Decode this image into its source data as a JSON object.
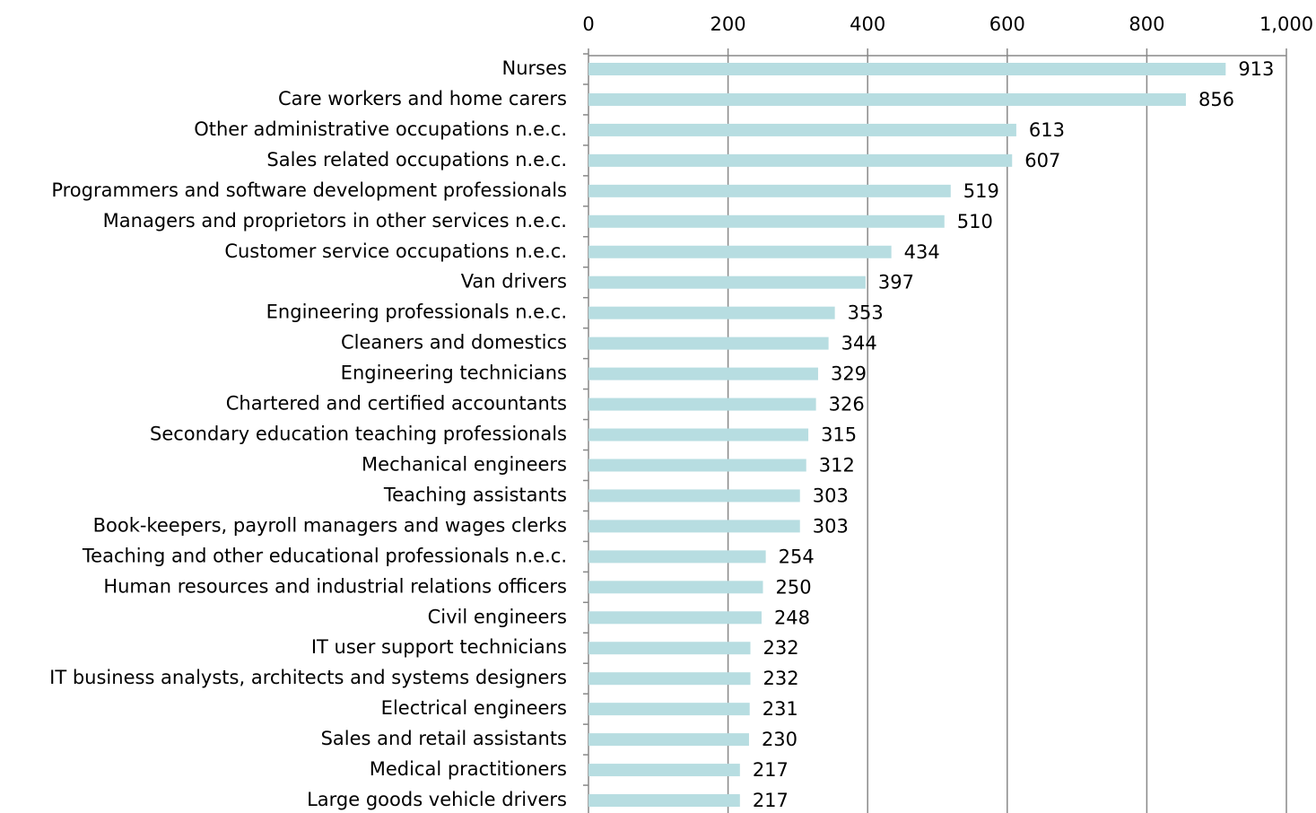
{
  "chart_data": {
    "type": "bar",
    "orientation": "horizontal",
    "categories": [
      "Nurses",
      "Care workers and home carers",
      "Other administrative occupations n.e.c.",
      "Sales related occupations n.e.c.",
      "Programmers and software development professionals",
      "Managers and proprietors in other services n.e.c.",
      "Customer service occupations n.e.c.",
      "Van drivers",
      "Engineering professionals n.e.c.",
      "Cleaners and domestics",
      "Engineering technicians",
      "Chartered and certified accountants",
      "Secondary education teaching professionals",
      "Mechanical engineers",
      "Teaching assistants",
      "Book-keepers, payroll managers and wages clerks",
      "Teaching and other educational professionals n.e.c.",
      "Human resources and industrial relations officers",
      "Civil engineers",
      "IT user support technicians",
      "IT business analysts, architects and systems designers",
      "Electrical engineers",
      "Sales and retail assistants",
      "Medical practitioners",
      "Large goods vehicle drivers"
    ],
    "values": [
      913,
      856,
      613,
      607,
      519,
      510,
      434,
      397,
      353,
      344,
      329,
      326,
      315,
      312,
      303,
      303,
      254,
      250,
      248,
      232,
      232,
      231,
      230,
      217,
      217
    ],
    "color": "#b7dde1",
    "xlim": [
      0,
      1000
    ],
    "xticks": [
      0,
      200,
      400,
      600,
      800,
      {
        "value": 1000,
        "label": "1,000"
      }
    ],
    "grid": true
  }
}
